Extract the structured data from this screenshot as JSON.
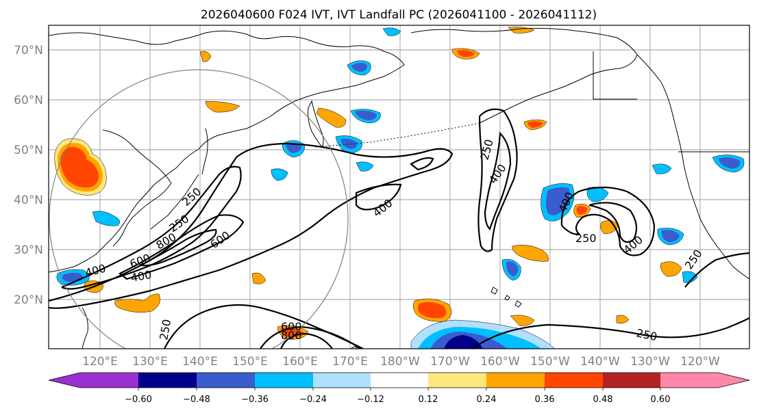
{
  "title": "2026040600 F024 IVT, IVT Landfall PC (2026041100 - 2026041112)",
  "latitude_labels": [
    "70°N",
    "60°N",
    "50°N",
    "40°N",
    "30°N",
    "20°N"
  ],
  "longitude_labels": [
    "120°E",
    "130°E",
    "140°E",
    "150°E",
    "160°E",
    "170°E",
    "180°W",
    "170°W",
    "160°W",
    "150°W",
    "140°W",
    "130°W",
    "120°W"
  ],
  "colorbar": {
    "ticks": [
      "−0.60",
      "−0.48",
      "−0.36",
      "−0.24",
      "−0.12",
      "0.12",
      "0.24",
      "0.36",
      "0.48",
      "0.60"
    ],
    "colors": [
      "#9b30d0",
      "#00008b",
      "#3a5ccc",
      "#00bfff",
      "#b0e0ff",
      "#ffffff",
      "#ffe680",
      "#ffa500",
      "#ff4500",
      "#b22222",
      "#ff88aa"
    ],
    "extend": "both"
  },
  "contour_labels": [
    "250",
    "400",
    "600",
    "800",
    "250",
    "400",
    "600",
    "400",
    "400",
    "250",
    "400",
    "250",
    "400",
    "250",
    "250",
    "250",
    "600",
    "800",
    "400",
    "250"
  ],
  "colors": {
    "grid": "#9a9a9a",
    "axis_label": "#808080",
    "coast": "#000000"
  }
}
